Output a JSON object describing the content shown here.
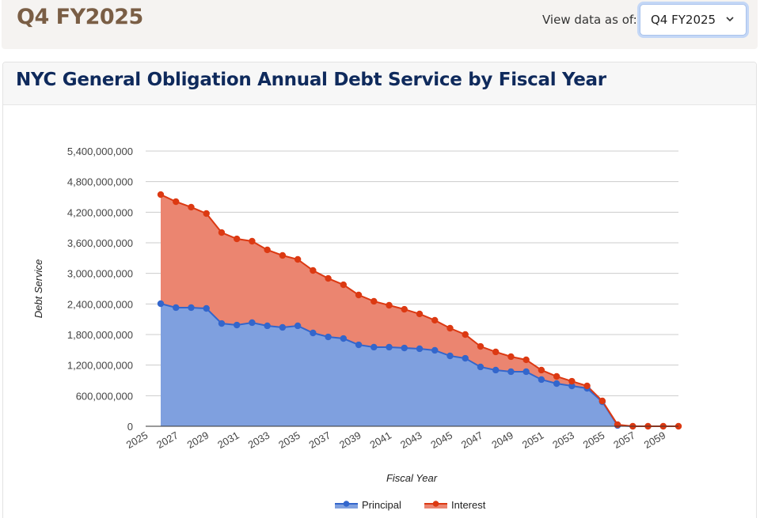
{
  "header": {
    "title": "Q4 FY2025",
    "view_label": "View data as of:",
    "view_select_value": "Q4 FY2025",
    "chevron_icon": "chevron-down-icon"
  },
  "card": {
    "title": "NYC General Obligation Annual Debt Service by Fiscal Year"
  },
  "colors": {
    "principal_line": "#3366cc",
    "principal_fill": "#7fa0df",
    "interest_line": "#dc3912",
    "interest_fill": "#eb8570",
    "title_brown": "#7a5e45",
    "title_navy": "#0f2a5c"
  },
  "chart_data": {
    "type": "area",
    "stacked": true,
    "title": "NYC General Obligation Annual Debt Service by Fiscal Year",
    "xlabel": "Fiscal Year",
    "ylabel": "Debt Service",
    "x": [
      2026,
      2027,
      2028,
      2029,
      2030,
      2031,
      2032,
      2033,
      2034,
      2035,
      2036,
      2037,
      2038,
      2039,
      2040,
      2041,
      2042,
      2043,
      2044,
      2045,
      2046,
      2047,
      2048,
      2049,
      2050,
      2051,
      2052,
      2053,
      2054,
      2055,
      2056,
      2057,
      2058,
      2059,
      2060
    ],
    "xlim": [
      2025,
      2060
    ],
    "x_tick_labels": [
      "2025",
      "2027",
      "2029",
      "2031",
      "2033",
      "2035",
      "2037",
      "2039",
      "2041",
      "2043",
      "2045",
      "2047",
      "2049",
      "2051",
      "2053",
      "2055",
      "2057",
      "2059"
    ],
    "ylim": [
      0,
      5400000000
    ],
    "y_tick_labels": [
      "0",
      "600,000,000",
      "1,200,000,000",
      "1,800,000,000",
      "2,400,000,000",
      "3,000,000,000",
      "3,600,000,000",
      "4,200,000,000",
      "4,800,000,000",
      "5,400,000,000"
    ],
    "y_ticks": [
      0,
      600000000,
      1200000000,
      1800000000,
      2400000000,
      3000000000,
      3600000000,
      4200000000,
      4800000000,
      5400000000
    ],
    "grid": true,
    "legend": "bottom",
    "series": [
      {
        "name": "Principal",
        "values": [
          2405000000,
          2328000000,
          2328000000,
          2312000000,
          2017000000,
          1986000000,
          2033000000,
          1971000000,
          1940000000,
          1971000000,
          1831000000,
          1753000000,
          1722000000,
          1598000000,
          1552000000,
          1552000000,
          1536000000,
          1521000000,
          1490000000,
          1381000000,
          1334000000,
          1164000000,
          1102000000,
          1071000000,
          1071000000,
          916000000,
          838000000,
          791000000,
          745000000,
          481000000,
          16000000,
          0,
          0,
          0,
          0
        ]
      },
      {
        "name": "Interest",
        "values": [
          2141000000,
          2079000000,
          1971000000,
          1862000000,
          1784000000,
          1691000000,
          1598000000,
          1490000000,
          1412000000,
          1303000000,
          1226000000,
          1148000000,
          1055000000,
          978000000,
          900000000,
          822000000,
          760000000,
          683000000,
          590000000,
          543000000,
          466000000,
          403000000,
          357000000,
          295000000,
          233000000,
          186000000,
          140000000,
          93000000,
          47000000,
          16000000,
          16000000,
          0,
          0,
          0,
          0
        ]
      }
    ]
  }
}
